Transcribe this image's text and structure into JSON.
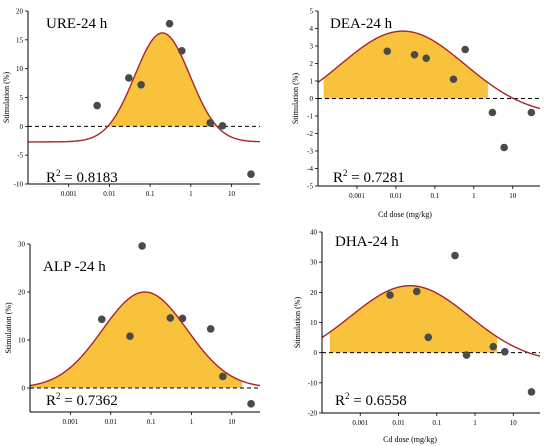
{
  "colors": {
    "fill": "#F9C23C",
    "curve": "#A6262B",
    "point": "#4A4A4A",
    "axis": "#000000"
  },
  "chart_data": [
    {
      "type": "scatter",
      "title": "URE-24 h",
      "xlabel": "",
      "ylabel": "Stimulation (%)",
      "xscale": "log",
      "xlim": [
        0.0001,
        50
      ],
      "ylim": [
        -10,
        20
      ],
      "xticks": [
        "0.001",
        "0.01",
        "0.1",
        "1",
        "10"
      ],
      "yticks": [
        -10,
        -5,
        0,
        5,
        10,
        15,
        20
      ],
      "r2_value": "= 0.8183",
      "points": [
        {
          "x": 0.005,
          "y": 3.6
        },
        {
          "x": 0.03,
          "y": 8.4
        },
        {
          "x": 0.06,
          "y": 7.2
        },
        {
          "x": 0.3,
          "y": 17.8
        },
        {
          "x": 0.6,
          "y": 13.1
        },
        {
          "x": 3,
          "y": 0.6
        },
        {
          "x": 6,
          "y": 0.1
        },
        {
          "x": 30,
          "y": -8.3
        }
      ],
      "fit": {
        "peak": 16.2,
        "center": 0.2,
        "width": 0.68,
        "baseline": -2.7
      },
      "fill_between": [
        0.0065,
        5
      ]
    },
    {
      "type": "scatter",
      "title": "DEA-24 h",
      "xlabel": "Cd dose (mg/kg)",
      "ylabel": "Stimulation (%)",
      "xscale": "log",
      "xlim": [
        0.0001,
        50
      ],
      "ylim": [
        -5,
        5
      ],
      "xticks": [
        "0.001",
        "0.01",
        "0.1",
        "1",
        "10"
      ],
      "yticks": [
        -5,
        -4,
        -3,
        -2,
        -1,
        0,
        1,
        2,
        3,
        4,
        5
      ],
      "r2_value": "= 0.7281",
      "points": [
        {
          "x": 0.006,
          "y": 2.7
        },
        {
          "x": 0.03,
          "y": 2.5
        },
        {
          "x": 0.06,
          "y": 2.3
        },
        {
          "x": 0.3,
          "y": 1.1
        },
        {
          "x": 0.6,
          "y": 2.8
        },
        {
          "x": 3,
          "y": -0.8
        },
        {
          "x": 6,
          "y": -2.8
        },
        {
          "x": 30,
          "y": -0.8
        }
      ],
      "fit": {
        "peak": 3.85,
        "center": 0.015,
        "width": 1.6,
        "baseline": -1.0
      },
      "fill_between": [
        0.00014,
        2.3
      ]
    },
    {
      "type": "scatter",
      "title": "ALP -24 h",
      "xlabel": "",
      "ylabel": "Stimulation (%)",
      "xscale": "log",
      "xlim": [
        0.0001,
        50
      ],
      "ylim": [
        -5,
        30
      ],
      "xticks": [
        "0.001",
        "0.01",
        "0.1",
        "1",
        "10"
      ],
      "yticks": [
        0,
        10,
        20,
        30
      ],
      "r2_value": "= 0.7362",
      "points": [
        {
          "x": 0.006,
          "y": 14.3
        },
        {
          "x": 0.03,
          "y": 10.8
        },
        {
          "x": 0.06,
          "y": 29.6
        },
        {
          "x": 0.3,
          "y": 14.6
        },
        {
          "x": 0.6,
          "y": 14.5
        },
        {
          "x": 3,
          "y": 12.3
        },
        {
          "x": 6,
          "y": 2.4
        },
        {
          "x": 30,
          "y": -3.3
        }
      ],
      "fit": {
        "peak": 20.0,
        "center": 0.07,
        "width": 1.05,
        "baseline": 0
      },
      "fill_between": [
        0.0001,
        18
      ]
    },
    {
      "type": "scatter",
      "title": "DHA-24 h",
      "xlabel": "Cd dose (mg/kg)",
      "ylabel": "Stimulation (%)",
      "xscale": "log",
      "xlim": [
        0.0001,
        50
      ],
      "ylim": [
        -20,
        40
      ],
      "xticks": [
        "0.001",
        "0.01",
        "0.1",
        "1",
        "10"
      ],
      "yticks": [
        -20,
        -10,
        0,
        10,
        20,
        30,
        40
      ],
      "r2_value": "= 0.6558",
      "points": [
        {
          "x": 0.006,
          "y": 19.1
        },
        {
          "x": 0.03,
          "y": 20.3
        },
        {
          "x": 0.06,
          "y": 5.1
        },
        {
          "x": 0.3,
          "y": 32.2
        },
        {
          "x": 0.6,
          "y": -0.8
        },
        {
          "x": 3,
          "y": 2.0
        },
        {
          "x": 6,
          "y": 0.3
        },
        {
          "x": 30,
          "y": -13.0
        }
      ],
      "fit": {
        "peak": 22.2,
        "center": 0.02,
        "width": 1.55,
        "baseline": -3.5
      },
      "fill_between": [
        0.00016,
        3.8
      ]
    }
  ]
}
